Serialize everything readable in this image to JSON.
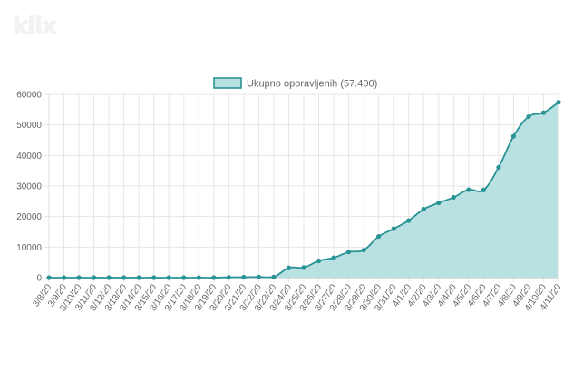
{
  "brand": {
    "logo_text": "klix"
  },
  "chart_data": {
    "type": "area",
    "legend": {
      "label": "Ukupno oporavljenih (57.400)",
      "position": "top-center"
    },
    "colors": {
      "line": "#2a9396",
      "fill": "#b6dfdf",
      "grid": "#e6e6e6",
      "tick_text": "#666666"
    },
    "x": [
      "3/8/20",
      "3/9/20",
      "3/10/20",
      "3/11/20",
      "3/12/20",
      "3/13/20",
      "3/14/20",
      "3/15/20",
      "3/16/20",
      "3/17/20",
      "3/18/20",
      "3/19/20",
      "3/20/20",
      "3/21/20",
      "3/22/20",
      "3/23/20",
      "3/24/20",
      "3/25/20",
      "3/26/20",
      "3/27/20",
      "3/28/20",
      "3/29/20",
      "3/30/20",
      "3/31/20",
      "4/1/20",
      "4/2/20",
      "4/3/20",
      "4/4/20",
      "4/5/20",
      "4/6/20",
      "4/7/20",
      "4/8/20",
      "4/9/20",
      "4/10/20",
      "4/11/20"
    ],
    "series": [
      {
        "name": "Ukupno oporavljenih (57.400)",
        "values": [
          0,
          0,
          0,
          0,
          0,
          0,
          0,
          0,
          0,
          0,
          0,
          0,
          100,
          150,
          200,
          200,
          3200,
          3300,
          5500,
          6500,
          8400,
          9000,
          13500,
          16000,
          18700,
          22400,
          24500,
          26300,
          28800,
          28700,
          36100,
          46300,
          52700,
          54000,
          57400
        ]
      }
    ],
    "yticks": [
      "0",
      "10000",
      "20000",
      "30000",
      "40000",
      "50000",
      "60000"
    ],
    "ylim": [
      0,
      60000
    ],
    "grid": true
  }
}
